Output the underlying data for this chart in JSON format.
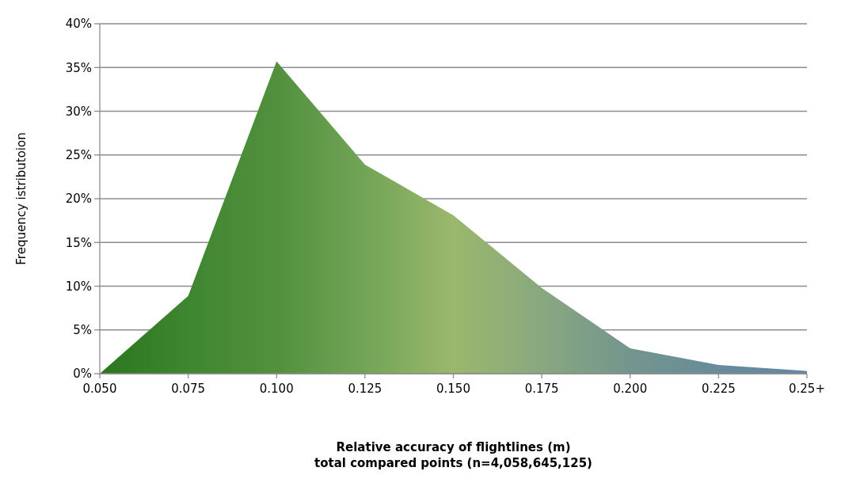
{
  "chart_data": {
    "type": "area",
    "xlabel": "Relative accuracy of flightlines (m)\ntotal compared points (n=4,058,645,125)",
    "ylabel": "Frequency istributoion",
    "categories": [
      "0.050",
      "0.075",
      "0.100",
      "0.125",
      "0.150",
      "0.175",
      "0.200",
      "0.225",
      "0.25+"
    ],
    "values": [
      0,
      8.9,
      35.7,
      23.9,
      18.1,
      9.8,
      2.9,
      1.0,
      0.3
    ],
    "colors": [
      "#2a761f",
      "#3f8630",
      "#52903e",
      "#72a457",
      "#9bb86c",
      "#88a87f",
      "#73958e",
      "#688c9a",
      "#6387a8"
    ],
    "ylim": [
      0,
      40
    ],
    "yticks": [
      {
        "value": 0,
        "label": "0%"
      },
      {
        "value": 5,
        "label": "5%"
      },
      {
        "value": 10,
        "label": "10%"
      },
      {
        "value": 15,
        "label": "15%"
      },
      {
        "value": 20,
        "label": "20%"
      },
      {
        "value": 25,
        "label": "25%"
      },
      {
        "value": 30,
        "label": "30%"
      },
      {
        "value": 35,
        "label": "35%"
      },
      {
        "value": 40,
        "label": "40%"
      }
    ],
    "grid": "y"
  }
}
